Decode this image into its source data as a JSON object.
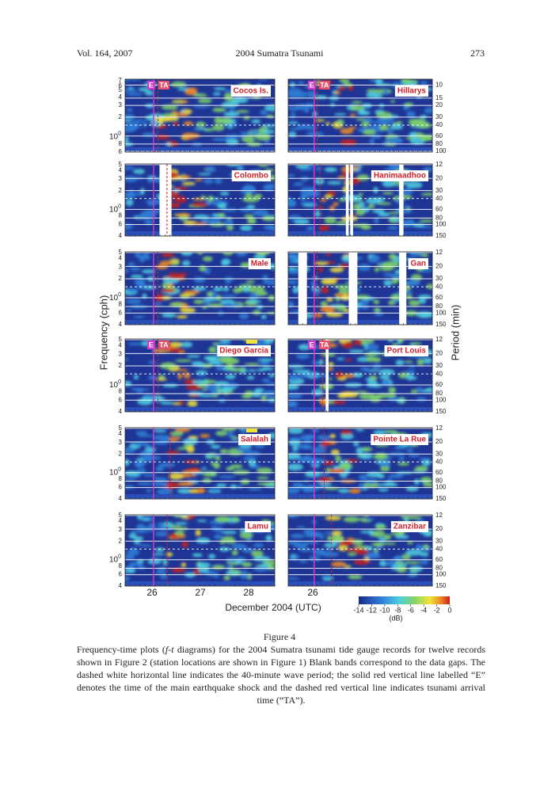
{
  "header": {
    "volume": "Vol. 164, 2007",
    "title": "2004 Sumatra Tsunami",
    "page": "273"
  },
  "figure": {
    "panels": [
      {
        "station": "Cocos Is.",
        "markers": [
          "E",
          "TA"
        ]
      },
      {
        "station": "Hillarys",
        "markers": [
          "E",
          "TA"
        ]
      },
      {
        "station": "Colombo"
      },
      {
        "station": "Hanimaadhoo"
      },
      {
        "station": "Male"
      },
      {
        "station": "Gan"
      },
      {
        "station": "Diego Garcia",
        "markers": [
          "E",
          "TA"
        ]
      },
      {
        "station": "Port Louis",
        "markers": [
          "E",
          "TA"
        ]
      },
      {
        "station": "Salalah"
      },
      {
        "station": "Pointe La Rue"
      },
      {
        "station": "Lamu"
      },
      {
        "station": "Zanzibar"
      }
    ],
    "rows": [
      {
        "left_ticks": [
          "7",
          "6",
          "5",
          "4",
          "3",
          "2",
          {
            "base": "10",
            "sup": "0"
          },
          "8",
          "6"
        ],
        "right_ticks": [
          "10",
          "15",
          "20",
          "30",
          "40",
          "60",
          "80",
          "100"
        ]
      },
      {
        "left_ticks": [
          "5",
          "4",
          "3",
          "2",
          {
            "base": "10",
            "sup": "0"
          },
          "8",
          "6",
          "4"
        ],
        "right_ticks": [
          "12",
          "20",
          "30",
          "40",
          "60",
          "80",
          "100",
          "150"
        ]
      },
      {
        "left_ticks": [
          "5",
          "4",
          "3",
          "2",
          {
            "base": "10",
            "sup": "0"
          },
          "8",
          "6",
          "4"
        ],
        "right_ticks": [
          "12",
          "20",
          "30",
          "40",
          "60",
          "80",
          "100",
          "150"
        ]
      },
      {
        "left_ticks": [
          "5",
          "4",
          "3",
          "2",
          {
            "base": "10",
            "sup": "0"
          },
          "8",
          "6",
          "4"
        ],
        "right_ticks": [
          "12",
          "20",
          "30",
          "40",
          "60",
          "80",
          "100",
          "150"
        ]
      },
      {
        "left_ticks": [
          "5",
          "4",
          "3",
          "2",
          {
            "base": "10",
            "sup": "0"
          },
          "8",
          "6",
          "4"
        ],
        "right_ticks": [
          "12",
          "20",
          "30",
          "40",
          "60",
          "80",
          "100",
          "150"
        ]
      },
      {
        "left_ticks": [
          "5",
          "4",
          "3",
          "2",
          {
            "base": "10",
            "sup": "0"
          },
          "8",
          "6",
          "4"
        ],
        "right_ticks": [
          "12",
          "20",
          "30",
          "40",
          "60",
          "80",
          "100",
          "150"
        ]
      }
    ],
    "y_label": "Frequency  (cph)",
    "y2_label": "Period  (min)",
    "x_ticks_left": [
      "26",
      "27",
      "28"
    ],
    "x_ticks_right": [
      "26"
    ],
    "x_label": "December 2004 (UTC)",
    "colorbar": {
      "ticks": [
        "-14",
        "-12",
        "-10",
        "-8",
        "-6",
        "-4",
        "-2",
        "0"
      ],
      "unit": "(dB)"
    }
  },
  "caption": {
    "label": "Figure 4",
    "parts": [
      "Frequency-time plots (",
      "f-t",
      " diagrams) for the 2004 Sumatra tsunami tide gauge records for twelve records shown in Figure 2 (station locations are shown in Figure 1) Blank bands correspond to the data gaps. The dashed white horizontal line indicates the 40-minute wave period; the solid red vertical line labelled “E” denotes the time of the main earthquake shock and the dashed red vertical line indicates tsunami arrival time (“TA”)."
    ]
  }
}
